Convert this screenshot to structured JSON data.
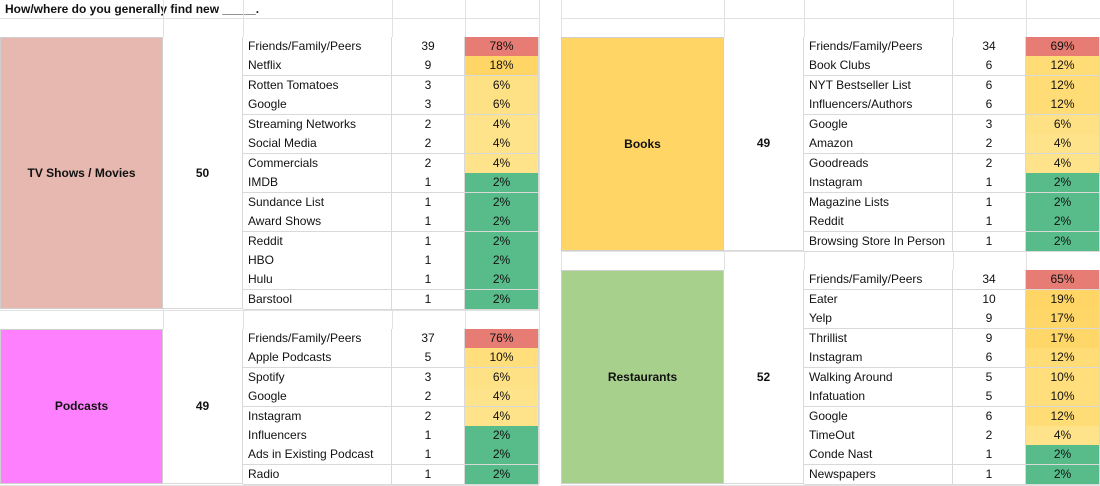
{
  "title": "How/where do you generally find new _____.",
  "colors": {
    "high": "#e67c73",
    "mid": "#ffd666",
    "low": "#57bb8a"
  },
  "sections": [
    {
      "category": "TV Shows / Movies",
      "total": "50",
      "color": "#e6b8af",
      "rows": [
        {
          "source": "Friends/Family/Peers",
          "count": "39",
          "percent": "78%",
          "pct": 78
        },
        {
          "source": "Netflix",
          "count": "9",
          "percent": "18%",
          "pct": 18
        },
        {
          "source": "Rotten Tomatoes",
          "count": "3",
          "percent": "6%",
          "pct": 6
        },
        {
          "source": "Google",
          "count": "3",
          "percent": "6%",
          "pct": 6
        },
        {
          "source": "Streaming Networks",
          "count": "2",
          "percent": "4%",
          "pct": 4
        },
        {
          "source": "Social Media",
          "count": "2",
          "percent": "4%",
          "pct": 4
        },
        {
          "source": "Commercials",
          "count": "2",
          "percent": "4%",
          "pct": 4
        },
        {
          "source": "IMDB",
          "count": "1",
          "percent": "2%",
          "pct": 2
        },
        {
          "source": "Sundance List",
          "count": "1",
          "percent": "2%",
          "pct": 2
        },
        {
          "source": "Award Shows",
          "count": "1",
          "percent": "2%",
          "pct": 2
        },
        {
          "source": "Reddit",
          "count": "1",
          "percent": "2%",
          "pct": 2
        },
        {
          "source": "HBO",
          "count": "1",
          "percent": "2%",
          "pct": 2
        },
        {
          "source": "Hulu",
          "count": "1",
          "percent": "2%",
          "pct": 2
        },
        {
          "source": "Barstool",
          "count": "1",
          "percent": "2%",
          "pct": 2
        }
      ]
    },
    {
      "category": "Podcasts",
      "total": "49",
      "color": "#ff80ff",
      "rows": [
        {
          "source": "Friends/Family/Peers",
          "count": "37",
          "percent": "76%",
          "pct": 76
        },
        {
          "source": "Apple Podcasts",
          "count": "5",
          "percent": "10%",
          "pct": 10
        },
        {
          "source": "Spotify",
          "count": "3",
          "percent": "6%",
          "pct": 6
        },
        {
          "source": "Google",
          "count": "2",
          "percent": "4%",
          "pct": 4
        },
        {
          "source": "Instagram",
          "count": "2",
          "percent": "4%",
          "pct": 4
        },
        {
          "source": "Influencers",
          "count": "1",
          "percent": "2%",
          "pct": 2
        },
        {
          "source": "Ads in Existing Podcast",
          "count": "1",
          "percent": "2%",
          "pct": 2
        },
        {
          "source": "Radio",
          "count": "1",
          "percent": "2%",
          "pct": 2
        }
      ]
    },
    {
      "category": "Books",
      "total": "49",
      "color": "#ffd666",
      "rows": [
        {
          "source": "Friends/Family/Peers",
          "count": "34",
          "percent": "69%",
          "pct": 69
        },
        {
          "source": "Book Clubs",
          "count": "6",
          "percent": "12%",
          "pct": 12
        },
        {
          "source": "NYT Bestseller List",
          "count": "6",
          "percent": "12%",
          "pct": 12
        },
        {
          "source": "Influencers/Authors",
          "count": "6",
          "percent": "12%",
          "pct": 12
        },
        {
          "source": "Google",
          "count": "3",
          "percent": "6%",
          "pct": 6
        },
        {
          "source": "Amazon",
          "count": "2",
          "percent": "4%",
          "pct": 4
        },
        {
          "source": "Goodreads",
          "count": "2",
          "percent": "4%",
          "pct": 4
        },
        {
          "source": "Instagram",
          "count": "1",
          "percent": "2%",
          "pct": 2
        },
        {
          "source": "Magazine Lists",
          "count": "1",
          "percent": "2%",
          "pct": 2
        },
        {
          "source": "Reddit",
          "count": "1",
          "percent": "2%",
          "pct": 2
        },
        {
          "source": "Browsing Store In Person",
          "count": "1",
          "percent": "2%",
          "pct": 2
        }
      ]
    },
    {
      "category": "Restaurants",
      "total": "52",
      "color": "#a8d08d",
      "rows": [
        {
          "source": "Friends/Family/Peers",
          "count": "34",
          "percent": "65%",
          "pct": 65
        },
        {
          "source": "Eater",
          "count": "10",
          "percent": "19%",
          "pct": 19
        },
        {
          "source": "Yelp",
          "count": "9",
          "percent": "17%",
          "pct": 17
        },
        {
          "source": "Thrillist",
          "count": "9",
          "percent": "17%",
          "pct": 17
        },
        {
          "source": "Instagram",
          "count": "6",
          "percent": "12%",
          "pct": 12
        },
        {
          "source": "Walking Around",
          "count": "5",
          "percent": "10%",
          "pct": 10
        },
        {
          "source": "Infatuation",
          "count": "5",
          "percent": "10%",
          "pct": 10
        },
        {
          "source": "Google",
          "count": "6",
          "percent": "12%",
          "pct": 12
        },
        {
          "source": "TimeOut",
          "count": "2",
          "percent": "4%",
          "pct": 4
        },
        {
          "source": "Conde Nast",
          "count": "1",
          "percent": "2%",
          "pct": 2
        },
        {
          "source": "Newspapers",
          "count": "1",
          "percent": "2%",
          "pct": 2
        }
      ]
    }
  ]
}
